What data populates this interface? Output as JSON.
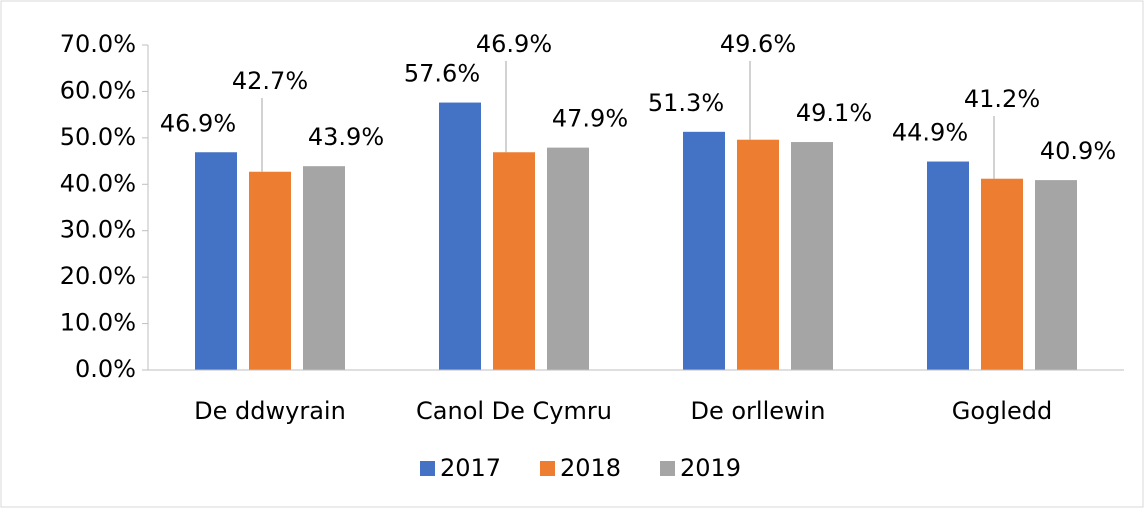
{
  "chart_data": {
    "type": "bar",
    "categories": [
      "De ddwyrain",
      "Canol De Cymru",
      "De orllewin",
      "Gogledd"
    ],
    "series": [
      {
        "name": "2017",
        "color": "#4472c4",
        "values": [
          46.9,
          57.6,
          51.3,
          44.9
        ],
        "value_labels": [
          "46.9%",
          "57.6%",
          "51.3%",
          "44.9%"
        ]
      },
      {
        "name": "2018",
        "color": "#ed7d31",
        "values": [
          42.7,
          46.9,
          49.6,
          41.2
        ],
        "value_labels": [
          "42.7%",
          "46.9%",
          "49.6%",
          "41.2%"
        ]
      },
      {
        "name": "2019",
        "color": "#a5a5a5",
        "values": [
          43.9,
          47.9,
          49.1,
          40.9
        ],
        "value_labels": [
          "43.9%",
          "47.9%",
          "49.1%",
          "40.9%"
        ]
      }
    ],
    "ylim": [
      0,
      70
    ],
    "yticks": [
      {
        "value": 0,
        "label": "0.0%"
      },
      {
        "value": 10,
        "label": "10.0%"
      },
      {
        "value": 20,
        "label": "20.0%"
      },
      {
        "value": 30,
        "label": "30.0%"
      },
      {
        "value": 40,
        "label": "40.0%"
      },
      {
        "value": 50,
        "label": "50.0%"
      },
      {
        "value": 60,
        "label": "60.0%"
      },
      {
        "value": 70,
        "label": "70.0%"
      }
    ],
    "legend": "bottom"
  }
}
